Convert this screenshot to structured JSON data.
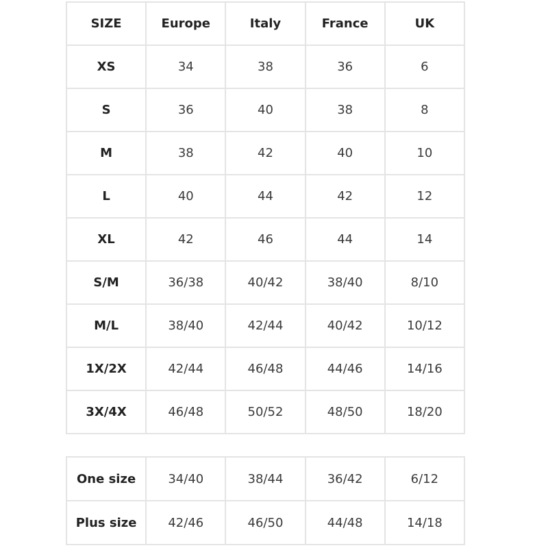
{
  "header": [
    "SIZE",
    "Europe",
    "Italy",
    "France",
    "UK"
  ],
  "rows": [
    [
      "XS",
      "34",
      "38",
      "36",
      "6"
    ],
    [
      "S",
      "36",
      "40",
      "38",
      "8"
    ],
    [
      "M",
      "38",
      "42",
      "40",
      "10"
    ],
    [
      "L",
      "40",
      "44",
      "42",
      "12"
    ],
    [
      "XL",
      "42",
      "46",
      "44",
      "14"
    ],
    [
      "S/M",
      "36/38",
      "40/42",
      "38/40",
      "8/10"
    ],
    [
      "M/L",
      "38/40",
      "42/44",
      "40/42",
      "10/12"
    ],
    [
      "1X/2X",
      "42/44",
      "46/48",
      "44/46",
      "14/16"
    ],
    [
      "3X/4X",
      "46/48",
      "50/52",
      "48/50",
      "18/20"
    ]
  ],
  "extra_rows": [
    [
      "One size",
      "34/40",
      "38/44",
      "36/42",
      "6/12"
    ],
    [
      "Plus size",
      "42/46",
      "46/50",
      "44/48",
      "14/18"
    ]
  ]
}
